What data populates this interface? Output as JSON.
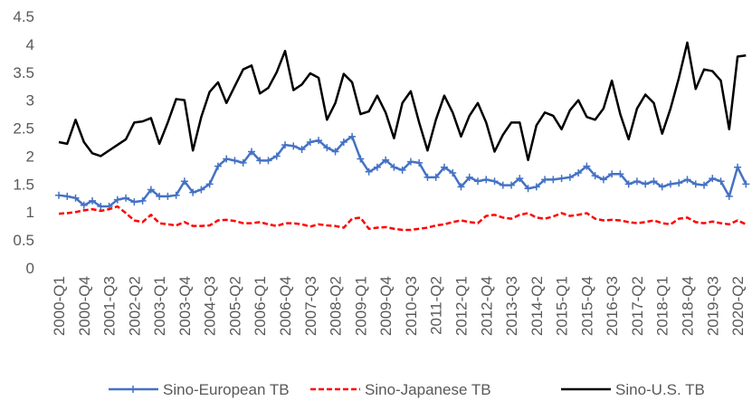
{
  "chart_data": {
    "type": "line",
    "categories": [
      "2000-Q1",
      null,
      null,
      "2000-Q4",
      null,
      null,
      "2001-Q3",
      null,
      null,
      "2002-Q2",
      null,
      null,
      "2003-Q1",
      null,
      null,
      "2003-Q4",
      null,
      null,
      "2004-Q3",
      null,
      null,
      "2005-Q2",
      null,
      null,
      "2006-Q1",
      null,
      null,
      "2006-Q4",
      null,
      null,
      "2007-Q3",
      null,
      null,
      "2008-Q2",
      null,
      null,
      "2009-Q1",
      null,
      null,
      "2009-Q4",
      null,
      null,
      "2010-Q3",
      null,
      null,
      "2011-Q2",
      null,
      null,
      "2012-Q1",
      null,
      null,
      "2012-Q4",
      null,
      null,
      "2013-Q3",
      null,
      null,
      "2014-Q2",
      null,
      null,
      "2015-Q1",
      null,
      null,
      "2015-Q4",
      null,
      null,
      "2016-Q3",
      null,
      null,
      "2017-Q2",
      null,
      null,
      "2018-Q1",
      null,
      null,
      "2018-Q4",
      null,
      null,
      "2019-Q3",
      null,
      null,
      "2020-Q2",
      null
    ],
    "series": [
      {
        "name": "Sino-European TB",
        "color": "#4472c4",
        "marker": "plus",
        "dash": "solid",
        "values": [
          1.3,
          1.28,
          1.25,
          1.12,
          1.2,
          1.1,
          1.1,
          1.22,
          1.25,
          1.18,
          1.2,
          1.4,
          1.28,
          1.28,
          1.3,
          1.55,
          1.35,
          1.4,
          1.5,
          1.82,
          1.95,
          1.92,
          1.88,
          2.08,
          1.92,
          1.92,
          2.0,
          2.2,
          2.18,
          2.12,
          2.25,
          2.28,
          2.15,
          2.08,
          2.25,
          2.35,
          1.95,
          1.72,
          1.8,
          1.93,
          1.8,
          1.75,
          1.9,
          1.88,
          1.62,
          1.62,
          1.8,
          1.7,
          1.45,
          1.62,
          1.55,
          1.58,
          1.55,
          1.48,
          1.48,
          1.6,
          1.42,
          1.45,
          1.58,
          1.58,
          1.6,
          1.62,
          1.7,
          1.82,
          1.65,
          1.58,
          1.68,
          1.68,
          1.5,
          1.55,
          1.5,
          1.55,
          1.45,
          1.5,
          1.52,
          1.58,
          1.5,
          1.48,
          1.6,
          1.55,
          1.28,
          1.8,
          1.5
        ]
      },
      {
        "name": "Sino-Japanese TB",
        "color": "#ff0000",
        "marker": "none",
        "dash": "dashed",
        "values": [
          0.97,
          0.98,
          1.0,
          1.03,
          1.05,
          1.02,
          1.05,
          1.1,
          0.98,
          0.85,
          0.82,
          0.95,
          0.8,
          0.78,
          0.76,
          0.82,
          0.75,
          0.75,
          0.76,
          0.85,
          0.86,
          0.84,
          0.8,
          0.8,
          0.82,
          0.78,
          0.75,
          0.8,
          0.8,
          0.78,
          0.74,
          0.78,
          0.76,
          0.75,
          0.72,
          0.88,
          0.9,
          0.7,
          0.72,
          0.73,
          0.7,
          0.68,
          0.68,
          0.7,
          0.72,
          0.76,
          0.78,
          0.82,
          0.85,
          0.82,
          0.8,
          0.93,
          0.95,
          0.9,
          0.88,
          0.95,
          0.98,
          0.9,
          0.88,
          0.92,
          0.98,
          0.93,
          0.95,
          0.98,
          0.88,
          0.85,
          0.86,
          0.85,
          0.82,
          0.8,
          0.82,
          0.85,
          0.8,
          0.78,
          0.88,
          0.9,
          0.82,
          0.8,
          0.83,
          0.8,
          0.78,
          0.85,
          0.78
        ]
      },
      {
        "name": "Sino-U.S. TB",
        "color": "#000000",
        "marker": "none",
        "dash": "solid",
        "values": [
          2.25,
          2.22,
          2.65,
          2.25,
          2.05,
          2.0,
          2.1,
          2.2,
          2.3,
          2.6,
          2.62,
          2.68,
          2.22,
          2.6,
          3.02,
          3.0,
          2.1,
          2.7,
          3.15,
          3.32,
          2.95,
          3.25,
          3.55,
          3.62,
          3.12,
          3.22,
          3.5,
          3.88,
          3.18,
          3.28,
          3.48,
          3.4,
          2.65,
          2.95,
          3.47,
          3.32,
          2.75,
          2.8,
          3.08,
          2.78,
          2.32,
          2.95,
          3.16,
          2.6,
          2.1,
          2.65,
          3.08,
          2.78,
          2.35,
          2.72,
          2.95,
          2.6,
          2.08,
          2.38,
          2.6,
          2.6,
          1.93,
          2.55,
          2.78,
          2.72,
          2.48,
          2.82,
          3.0,
          2.7,
          2.65,
          2.85,
          3.35,
          2.75,
          2.3,
          2.85,
          3.1,
          2.95,
          2.4,
          2.85,
          3.4,
          4.03,
          3.2,
          3.55,
          3.52,
          3.35,
          2.48,
          3.78,
          3.8
        ]
      }
    ],
    "ylim": [
      0,
      4.5
    ],
    "yticks": [
      0,
      0.5,
      1,
      1.5,
      2,
      2.5,
      3,
      3.5,
      4,
      4.5
    ],
    "grid": false,
    "legend": "bottom"
  }
}
